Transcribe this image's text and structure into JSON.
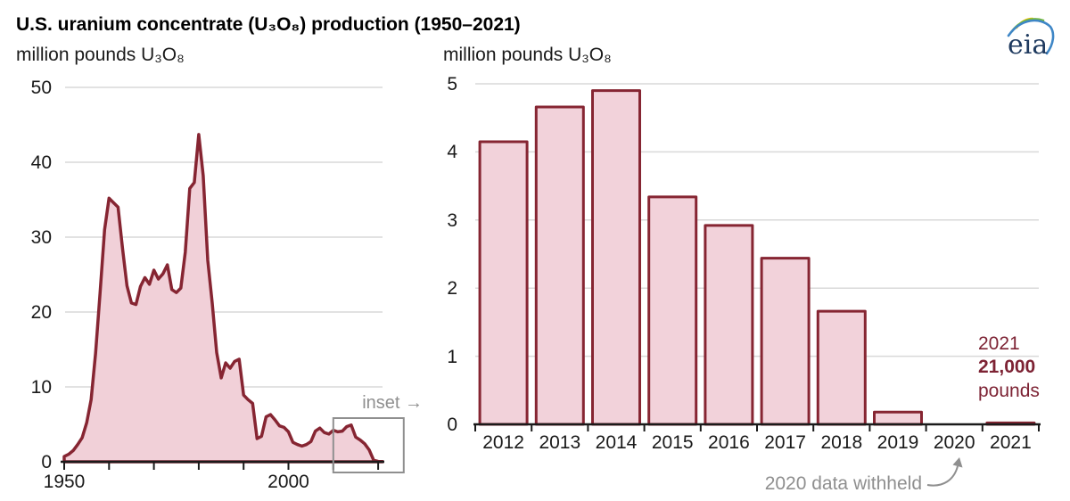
{
  "colors": {
    "accent_line": "#862532",
    "area_fill": "#f1d0d8",
    "bar_fill": "#f2d2da",
    "gridline": "#d9d9d9",
    "axis": "#1a1a1a",
    "gray_text": "#8f8f8f",
    "annotation_text": "#7d2334",
    "logo_navy": "#1f3a5f",
    "logo_yellow": "#f2c200",
    "logo_green": "#74b843",
    "logo_blue": "#3e86c6"
  },
  "header": {
    "title": "U.S. uranium concentrate (U₃O₈) production (1950–2021)",
    "logo_text": "eia"
  },
  "left_chart": {
    "ylabel": "million pounds U₃O₈",
    "inset_label": "inset",
    "inset_arrow": "→"
  },
  "right_chart": {
    "ylabel": "million pounds U₃O₈",
    "annotation": {
      "year": "2021",
      "value": "21,000",
      "unit": "pounds"
    },
    "withheld_note": "2020 data withheld"
  },
  "chart_data": [
    {
      "type": "area",
      "title": "U.S. uranium concentrate (U₃O₈) production (1950–2021)",
      "ylabel": "million pounds U₃O₈",
      "ylim": [
        0,
        50
      ],
      "yticks": [
        0,
        10,
        20,
        30,
        40,
        50
      ],
      "xticks": [
        1950,
        1960,
        1970,
        1980,
        1990,
        2000,
        2010,
        2020
      ],
      "xtick_labels_shown": [
        1950,
        2000
      ],
      "grid": true,
      "inset_region_start_year": 2010,
      "x": [
        1950,
        1951,
        1952,
        1953,
        1954,
        1955,
        1956,
        1957,
        1958,
        1959,
        1960,
        1961,
        1962,
        1963,
        1964,
        1965,
        1966,
        1967,
        1968,
        1969,
        1970,
        1971,
        1972,
        1973,
        1974,
        1975,
        1976,
        1977,
        1978,
        1979,
        1980,
        1981,
        1982,
        1983,
        1984,
        1985,
        1986,
        1987,
        1988,
        1989,
        1990,
        1991,
        1992,
        1993,
        1994,
        1995,
        1996,
        1997,
        1998,
        1999,
        2000,
        2001,
        2002,
        2003,
        2004,
        2005,
        2006,
        2007,
        2008,
        2009,
        2010,
        2011,
        2012,
        2013,
        2014,
        2015,
        2016,
        2017,
        2018,
        2019,
        2020,
        2021
      ],
      "values": [
        0.7,
        1.0,
        1.5,
        2.3,
        3.2,
        5.2,
        8.3,
        14.5,
        22.5,
        31.0,
        35.2,
        34.6,
        34.0,
        28.5,
        23.5,
        21.2,
        21.0,
        23.4,
        24.6,
        23.7,
        25.6,
        24.4,
        25.1,
        26.3,
        23.0,
        22.6,
        23.2,
        28.0,
        36.5,
        37.3,
        43.7,
        38.2,
        26.9,
        21.2,
        14.6,
        11.2,
        13.2,
        12.5,
        13.4,
        13.7,
        8.9,
        8.3,
        7.8,
        3.1,
        3.4,
        6.0,
        6.3,
        5.6,
        4.8,
        4.6,
        4.0,
        2.6,
        2.3,
        2.1,
        2.3,
        2.7,
        4.1,
        4.5,
        3.9,
        3.7,
        4.2,
        4.0,
        4.1,
        4.7,
        4.9,
        3.3,
        2.9,
        2.4,
        1.6,
        0.2,
        0.05,
        0.02
      ]
    },
    {
      "type": "bar",
      "ylabel": "million pounds U₃O₈",
      "ylim": [
        0,
        5
      ],
      "yticks": [
        0,
        1,
        2,
        3,
        4,
        5
      ],
      "grid": true,
      "categories": [
        "2012",
        "2013",
        "2014",
        "2015",
        "2016",
        "2017",
        "2018",
        "2019",
        "2020",
        "2021"
      ],
      "values": [
        4.15,
        4.66,
        4.9,
        3.34,
        2.92,
        2.44,
        1.66,
        0.18,
        null,
        0.021
      ],
      "annotations": [
        "2021 production: 21,000 pounds",
        "2020 data withheld"
      ]
    }
  ]
}
